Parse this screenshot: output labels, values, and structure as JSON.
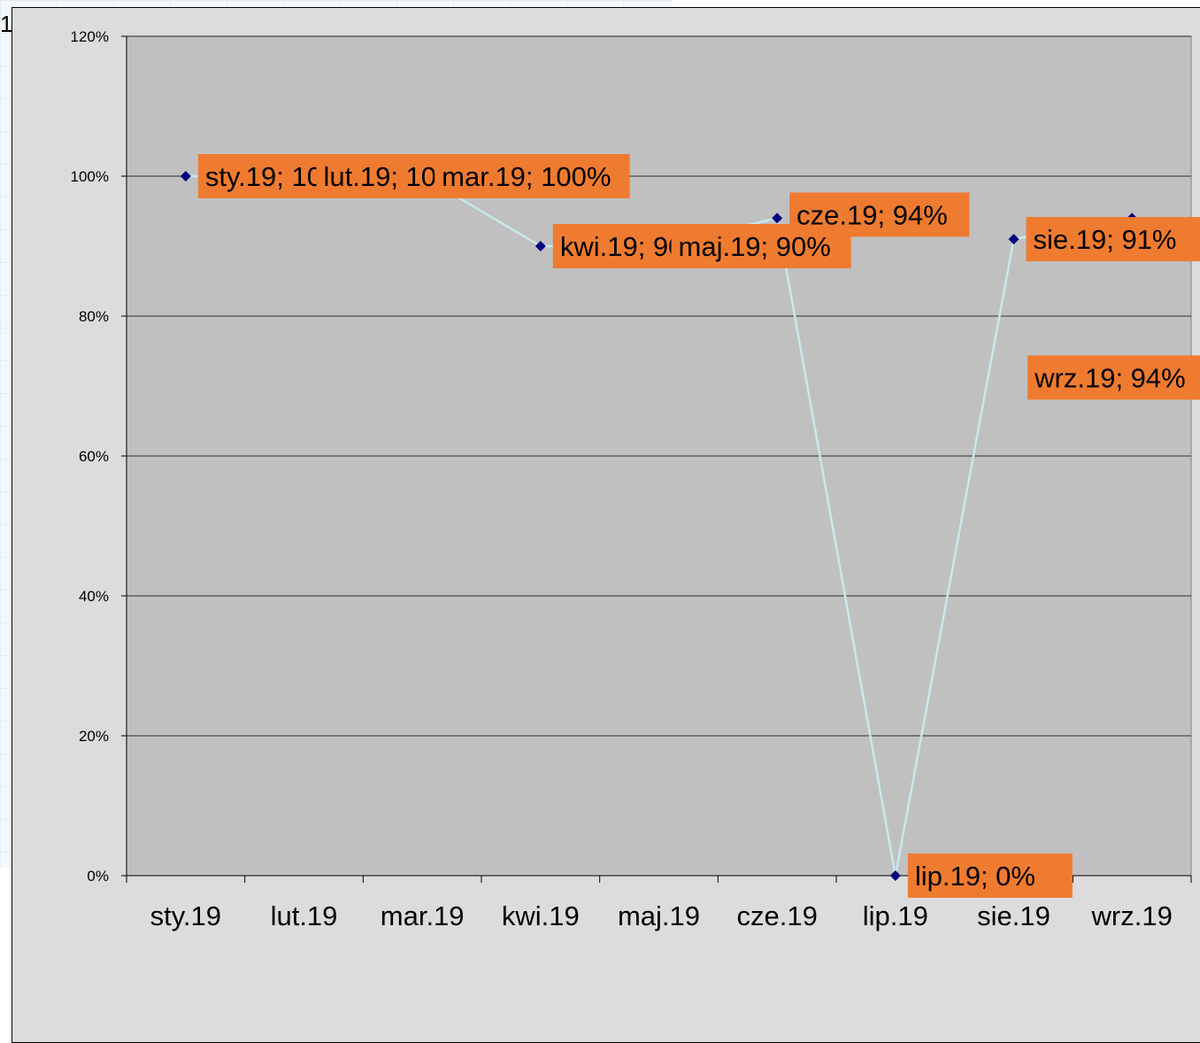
{
  "corner_label": "1",
  "chart_data": {
    "type": "line",
    "title": "",
    "xlabel": "",
    "ylabel": "",
    "categories": [
      "sty.19",
      "lut.19",
      "mar.19",
      "kwi.19",
      "maj.19",
      "cze.19",
      "lip.19",
      "sie.19",
      "wrz.19"
    ],
    "series": [
      {
        "name": "",
        "values": [
          1.0,
          1.0,
          1.0,
          0.9,
          0.9,
          0.94,
          0.0,
          0.91,
          0.94
        ],
        "data_labels": [
          "sty.19; 100%",
          "lut.19; 100%",
          "mar.19; 100%",
          "kwi.19; 90%",
          "maj.19; 90%",
          "cze.19; 94%",
          "lip.19; 0%",
          "sie.19; 91%",
          "wrz.19; 94%"
        ]
      }
    ],
    "ylim": [
      0,
      1.2
    ],
    "y_ticks": [
      "0%",
      "20%",
      "40%",
      "60%",
      "80%",
      "100%",
      "120%"
    ],
    "grid": true,
    "colors": {
      "plot_area": "#c0c0c0",
      "chart_area": "#dcdcdc",
      "line": "#c8e8ec",
      "marker": "#000080",
      "label_bg": "#ef7b30",
      "gridline": "#000000"
    }
  }
}
